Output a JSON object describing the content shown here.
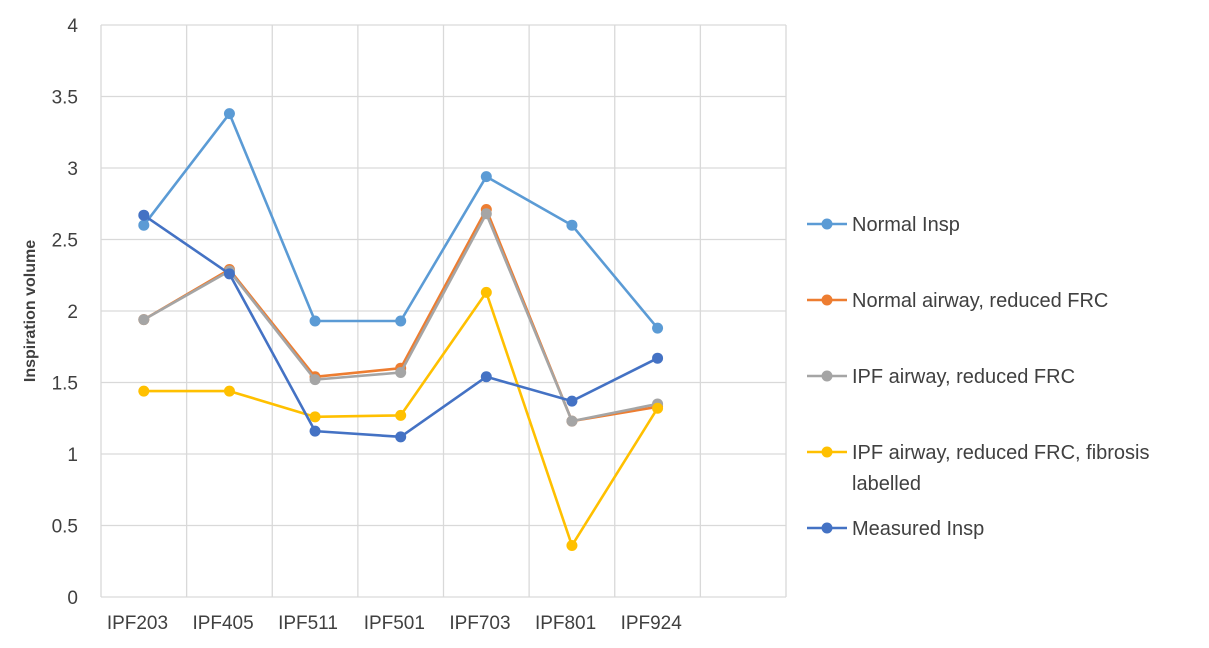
{
  "chart_data": {
    "type": "line",
    "title": "",
    "xlabel": "",
    "ylabel": "Inspiration volume",
    "ylim": [
      0,
      4
    ],
    "yticks": [
      "0",
      "0.5",
      "1",
      "1.5",
      "2",
      "2.5",
      "3",
      "3.5",
      "4"
    ],
    "grid": true,
    "legend_position": "right",
    "categories": [
      "IPF203",
      "IPF405",
      "IPF511",
      "IPF501",
      "IPF703",
      "IPF801",
      "IPF924"
    ],
    "series": [
      {
        "name": "Normal Insp",
        "color": "#5B9BD5",
        "values": [
          2.6,
          3.38,
          1.93,
          1.93,
          2.94,
          2.6,
          1.88
        ]
      },
      {
        "name": "Normal airway, reduced FRC",
        "color": "#ED7D31",
        "values": [
          1.94,
          2.29,
          1.54,
          1.6,
          2.71,
          1.23,
          1.33
        ]
      },
      {
        "name": "IPF airway, reduced FRC",
        "color": "#A5A5A5",
        "values": [
          1.94,
          2.28,
          1.52,
          1.57,
          2.68,
          1.23,
          1.35
        ]
      },
      {
        "name": "IPF airway, reduced FRC, fibrosis labelled",
        "legend_lines": [
          "IPF airway, reduced FRC, fibrosis",
          "labelled"
        ],
        "color": "#FFC000",
        "values": [
          1.44,
          1.44,
          1.26,
          1.27,
          2.13,
          0.36,
          1.32
        ]
      },
      {
        "name": "Measured Insp",
        "color": "#4472C4",
        "values": [
          2.67,
          2.26,
          1.16,
          1.12,
          1.54,
          1.37,
          1.67
        ]
      }
    ]
  }
}
